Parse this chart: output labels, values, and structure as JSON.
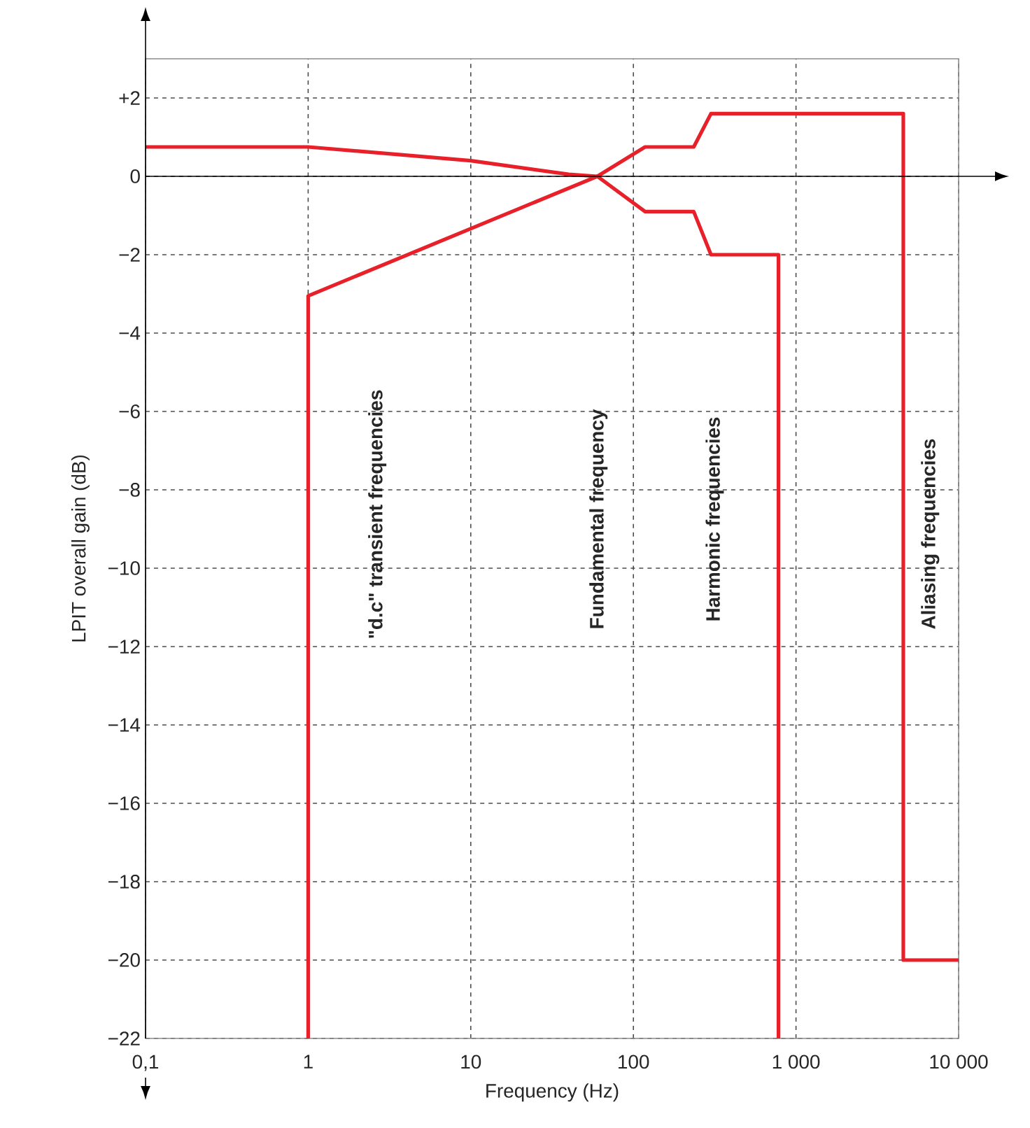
{
  "chart_data": {
    "type": "line",
    "xlabel": "Frequency   (Hz)",
    "ylabel": "LPIT overall gain   (dB)",
    "log": "x",
    "grid": true,
    "marker": "none",
    "line_style": "solid",
    "xlim": [
      0.1,
      10000
    ],
    "ylim": [
      -22,
      3
    ],
    "xticks": [
      {
        "value": 0.1,
        "label": "0,1"
      },
      1,
      10,
      100,
      {
        "value": 1000,
        "label": "1 000"
      },
      {
        "value": 10000,
        "label": "10 000"
      }
    ],
    "yticks": [
      {
        "value": -22,
        "label": "−22"
      },
      {
        "value": -20,
        "label": "−20"
      },
      {
        "value": -18,
        "label": "−18"
      },
      {
        "value": -16,
        "label": "−16"
      },
      {
        "value": -14,
        "label": "−14"
      },
      {
        "value": -12,
        "label": "−12"
      },
      {
        "value": -10,
        "label": "−10"
      },
      {
        "value": -8,
        "label": "−8"
      },
      {
        "value": -6,
        "label": "−6"
      },
      {
        "value": -4,
        "label": "−4"
      },
      {
        "value": -2,
        "label": "−2"
      },
      0,
      {
        "value": 2,
        "label": "+2"
      }
    ],
    "series": [
      {
        "color": "#e8202a",
        "x": [
          0.1,
          1,
          10,
          40,
          60,
          118,
          235,
          300,
          780,
          780
        ],
        "values": [
          0.75,
          0.75,
          0.4,
          0.05,
          0,
          -0.9,
          -0.9,
          -2,
          -2,
          -22
        ]
      },
      {
        "color": "#e8202a",
        "x": [
          1,
          1,
          60,
          118,
          235,
          300,
          4570,
          4570,
          10000
        ],
        "values": [
          -22,
          -3.05,
          0,
          0.75,
          0.75,
          1.6,
          1.6,
          -20,
          -20
        ]
      }
    ],
    "annotations": [
      "\"d.c\" transient frequencies",
      "Fundamental frequency",
      "Harmonic frequencies",
      "Aliasing frequencies"
    ]
  }
}
